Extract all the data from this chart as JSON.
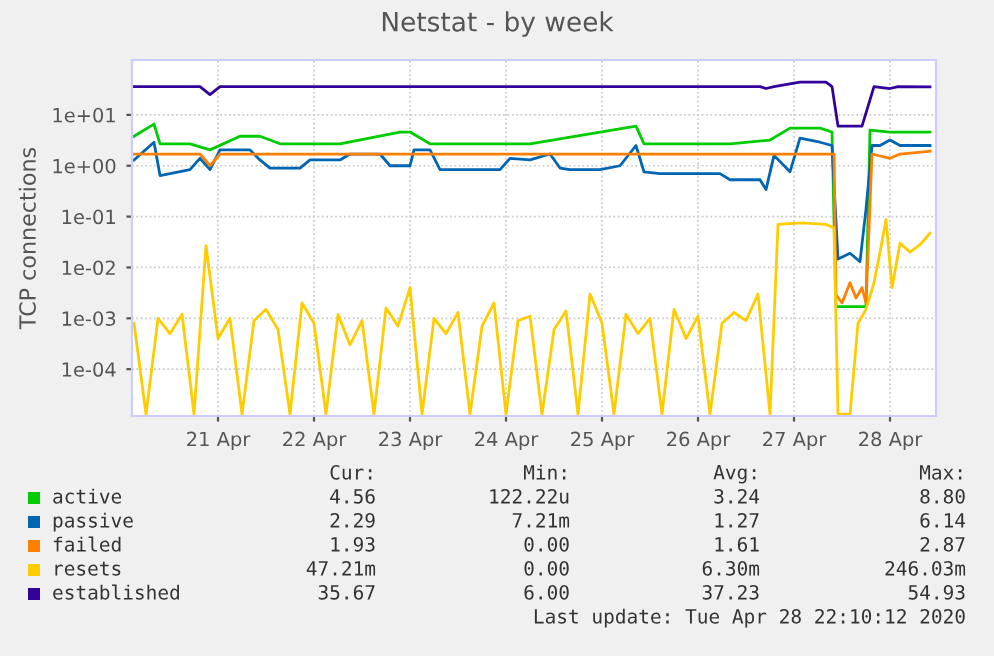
{
  "chart_data": {
    "type": "line",
    "title": "Netstat - by week",
    "ylabel": "TCP connections",
    "log": "y",
    "grid": true,
    "legend": "bottom",
    "marker": "none",
    "line_style": "solid",
    "ylim": [
      1.2e-05,
      120
    ],
    "yticks": [
      {
        "value": 0.0001,
        "label": "1e-04"
      },
      {
        "value": 0.001,
        "label": "1e-03"
      },
      {
        "value": 0.01,
        "label": "1e-02"
      },
      {
        "value": 0.1,
        "label": "1e-01"
      },
      {
        "value": 1,
        "label": "1e+00"
      },
      {
        "value": 10,
        "label": "1e+01"
      }
    ],
    "xlim": [
      "2020-04-20T14:30",
      "2020-04-28T23:30"
    ],
    "xticks": [
      {
        "value": "2020-04-21T12:00",
        "label": "21 Apr"
      },
      {
        "value": "2020-04-22T12:00",
        "label": "22 Apr"
      },
      {
        "value": "2020-04-23T12:00",
        "label": "23 Apr"
      },
      {
        "value": "2020-04-24T12:00",
        "label": "24 Apr"
      },
      {
        "value": "2020-04-25T12:00",
        "label": "25 Apr"
      },
      {
        "value": "2020-04-26T12:00",
        "label": "26 Apr"
      },
      {
        "value": "2020-04-27T12:00",
        "label": "27 Apr"
      },
      {
        "value": "2020-04-28T12:00",
        "label": "28 Apr"
      }
    ],
    "series": [
      {
        "name": "active",
        "color": "#00cc00",
        "x": [
          "2020-04-20T15:00",
          "2020-04-20T20:00",
          "2020-04-20T21:30",
          "2020-04-21T05:00",
          "2020-04-21T10:00",
          "2020-04-21T17:30",
          "2020-04-21T22:30",
          "2020-04-22T03:30",
          "2020-04-22T18:30",
          "2020-04-23T09:30",
          "2020-04-23T12:00",
          "2020-04-23T17:00",
          "2020-04-24T18:00",
          "2020-04-25T20:30",
          "2020-04-25T22:30",
          "2020-04-26T20:00",
          "2020-04-27T06:00",
          "2020-04-27T11:00",
          "2020-04-27T18:30",
          "2020-04-27T21:30",
          "2020-04-27T22:30",
          "2020-04-28T02:00",
          "2020-04-28T06:00",
          "2020-04-28T07:00",
          "2020-04-28T12:00",
          "2020-04-28T22:00"
        ],
        "values": [
          3.8,
          6.6,
          2.7,
          2.7,
          2.05,
          3.8,
          3.8,
          2.7,
          2.7,
          4.6,
          4.6,
          2.7,
          2.7,
          6.0,
          2.7,
          2.7,
          3.2,
          5.5,
          5.5,
          4.6,
          0.0017,
          0.0017,
          0.0017,
          5.0,
          4.6,
          4.6
        ]
      },
      {
        "name": "passive",
        "color": "#0066b3",
        "x": [
          "2020-04-20T15:00",
          "2020-04-20T20:00",
          "2020-04-20T21:30",
          "2020-04-21T05:00",
          "2020-04-21T07:30",
          "2020-04-21T10:00",
          "2020-04-21T12:30",
          "2020-04-21T20:00",
          "2020-04-21T22:30",
          "2020-04-22T01:00",
          "2020-04-22T08:30",
          "2020-04-22T11:00",
          "2020-04-22T18:30",
          "2020-04-22T21:00",
          "2020-04-23T04:30",
          "2020-04-23T07:00",
          "2020-04-23T12:00",
          "2020-04-23T13:00",
          "2020-04-23T17:00",
          "2020-04-23T19:30",
          "2020-04-24T10:30",
          "2020-04-24T13:00",
          "2020-04-24T18:00",
          "2020-04-24T23:00",
          "2020-04-25T01:30",
          "2020-04-25T04:00",
          "2020-04-25T11:30",
          "2020-04-25T16:30",
          "2020-04-25T20:30",
          "2020-04-25T22:30",
          "2020-04-26T02:30",
          "2020-04-26T17:30",
          "2020-04-26T20:00",
          "2020-04-27T03:30",
          "2020-04-27T05:00",
          "2020-04-27T07:00",
          "2020-04-27T11:00",
          "2020-04-27T13:30",
          "2020-04-27T18:30",
          "2020-04-27T21:30",
          "2020-04-27T23:00",
          "2020-04-28T02:00",
          "2020-04-28T04:30",
          "2020-04-28T06:00",
          "2020-04-28T07:30",
          "2020-04-28T09:30",
          "2020-04-28T12:00",
          "2020-04-28T14:30",
          "2020-04-28T22:00"
        ],
        "values": [
          1.3,
          2.9,
          0.64,
          0.84,
          1.4,
          0.84,
          2.05,
          2.05,
          1.3,
          0.9,
          0.9,
          1.3,
          1.3,
          1.7,
          1.7,
          1.0,
          1.0,
          2.05,
          2.05,
          0.84,
          0.84,
          1.4,
          1.3,
          1.7,
          0.9,
          0.84,
          0.84,
          1.0,
          2.5,
          0.76,
          0.7,
          0.7,
          0.53,
          0.53,
          0.34,
          1.6,
          0.76,
          3.5,
          2.9,
          2.5,
          0.0146,
          0.019,
          0.013,
          0.14,
          2.5,
          2.5,
          3.2,
          2.5,
          2.5
        ]
      },
      {
        "name": "failed",
        "color": "#ff8000",
        "x": [
          "2020-04-20T15:00",
          "2020-04-21T07:30",
          "2020-04-21T10:00",
          "2020-04-21T12:30",
          "2020-04-27T22:00",
          "2020-04-27T22:30",
          "2020-04-28T00:00",
          "2020-04-28T02:00",
          "2020-04-28T03:30",
          "2020-04-28T05:00",
          "2020-04-28T06:00",
          "2020-04-28T07:30",
          "2020-04-28T12:00",
          "2020-04-28T14:30",
          "2020-04-28T22:00"
        ],
        "values": [
          1.7,
          1.7,
          1.0,
          1.7,
          1.7,
          0.0029,
          0.002,
          0.005,
          0.0025,
          0.004,
          0.002,
          1.7,
          1.4,
          1.7,
          1.93
        ]
      },
      {
        "name": "resets",
        "color": "#ffcc00",
        "x": [
          "2020-04-20T15:00",
          "2020-04-20T18:00",
          "2020-04-20T21:00",
          "2020-04-21T00:00",
          "2020-04-21T03:00",
          "2020-04-21T06:00",
          "2020-04-21T09:00",
          "2020-04-21T12:00",
          "2020-04-21T15:00",
          "2020-04-21T18:00",
          "2020-04-21T21:00",
          "2020-04-22T00:00",
          "2020-04-22T03:00",
          "2020-04-22T06:00",
          "2020-04-22T09:00",
          "2020-04-22T12:00",
          "2020-04-22T15:00",
          "2020-04-22T18:00",
          "2020-04-22T21:00",
          "2020-04-23T00:00",
          "2020-04-23T03:00",
          "2020-04-23T06:00",
          "2020-04-23T09:00",
          "2020-04-23T12:00",
          "2020-04-23T15:00",
          "2020-04-23T18:00",
          "2020-04-23T21:00",
          "2020-04-24T00:00",
          "2020-04-24T03:00",
          "2020-04-24T06:00",
          "2020-04-24T09:00",
          "2020-04-24T12:00",
          "2020-04-24T15:00",
          "2020-04-24T18:00",
          "2020-04-24T21:00",
          "2020-04-25T00:00",
          "2020-04-25T03:00",
          "2020-04-25T06:00",
          "2020-04-25T09:00",
          "2020-04-25T12:00",
          "2020-04-25T15:00",
          "2020-04-25T18:00",
          "2020-04-25T21:00",
          "2020-04-26T00:00",
          "2020-04-26T03:00",
          "2020-04-26T06:00",
          "2020-04-26T09:00",
          "2020-04-26T12:00",
          "2020-04-26T15:00",
          "2020-04-26T18:00",
          "2020-04-26T21:00",
          "2020-04-27T00:00",
          "2020-04-27T03:00",
          "2020-04-27T06:00",
          "2020-04-27T08:00",
          "2020-04-27T14:00",
          "2020-04-27T20:00",
          "2020-04-27T22:00",
          "2020-04-27T23:00",
          "2020-04-28T02:00",
          "2020-04-28T04:00",
          "2020-04-28T06:00",
          "2020-04-28T08:00",
          "2020-04-28T09:30",
          "2020-04-28T11:00",
          "2020-04-28T12:30",
          "2020-04-28T14:30",
          "2020-04-28T17:00",
          "2020-04-28T19:30",
          "2020-04-28T22:00"
        ],
        "values": [
          0.0008,
          1.3e-05,
          0.001,
          0.0005,
          0.0012,
          1.3e-05,
          0.027,
          0.0004,
          0.001,
          1.3e-05,
          0.0009,
          0.0015,
          0.0006,
          1.3e-05,
          0.002,
          0.0008,
          1.3e-05,
          0.0012,
          0.0003,
          0.0009,
          1.3e-05,
          0.0016,
          0.0007,
          0.004,
          1.3e-05,
          0.001,
          0.0005,
          0.0013,
          1.3e-05,
          0.0007,
          0.002,
          1.3e-05,
          0.0009,
          0.0011,
          1.3e-05,
          0.0006,
          0.0014,
          1.3e-05,
          0.003,
          0.0008,
          1.3e-05,
          0.0012,
          0.0005,
          0.001,
          1.3e-05,
          0.0015,
          0.0004,
          0.0011,
          1.3e-05,
          0.0008,
          0.0013,
          0.0009,
          0.003,
          1.3e-05,
          0.07,
          0.075,
          0.07,
          0.06,
          1.3e-05,
          1.3e-05,
          0.0008,
          0.0015,
          0.005,
          0.02,
          0.088,
          0.004,
          0.03,
          0.02,
          0.028,
          0.047
        ]
      },
      {
        "name": "established",
        "color": "#330099",
        "x": [
          "2020-04-20T15:00",
          "2020-04-21T07:30",
          "2020-04-21T10:00",
          "2020-04-21T12:30",
          "2020-04-27T03:30",
          "2020-04-27T05:00",
          "2020-04-27T07:00",
          "2020-04-27T13:30",
          "2020-04-27T20:00",
          "2020-04-27T21:30",
          "2020-04-27T23:00",
          "2020-04-28T05:00",
          "2020-04-28T08:00",
          "2020-04-28T12:00",
          "2020-04-28T14:00",
          "2020-04-28T22:00"
        ],
        "values": [
          36,
          36,
          25,
          36,
          36,
          33,
          36,
          44,
          44,
          36,
          6.0,
          6.0,
          36,
          33,
          36,
          35.67
        ]
      }
    ],
    "annotations": [
      "Cur:",
      "Min:",
      "Avg:",
      "Max:",
      "4.56",
      "122.22u",
      "3.24",
      "8.80",
      "2.29",
      "7.21m",
      "1.27",
      "6.14",
      "1.93",
      "0.00",
      "1.61",
      "2.87",
      "47.21m",
      "0.00",
      "6.30m",
      "246.03m",
      "35.67",
      "6.00",
      "37.23",
      "54.93",
      "Last update: Tue Apr 28 22:10:12 2020"
    ]
  }
}
